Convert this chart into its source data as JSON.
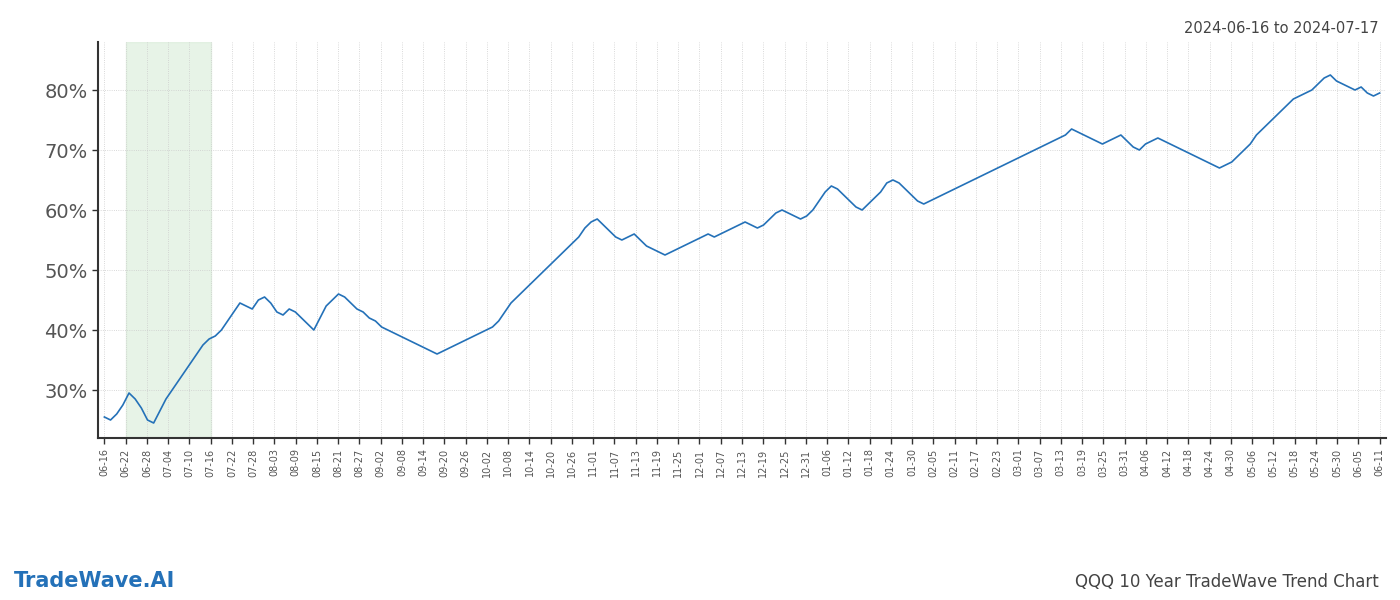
{
  "title_top_right": "2024-06-16 to 2024-07-17",
  "title_bottom_left": "TradeWave.AI",
  "title_bottom_right": "QQQ 10 Year TradeWave Trend Chart",
  "line_color": "#2471b8",
  "line_width": 1.2,
  "bg_color": "#ffffff",
  "grid_color": "#cccccc",
  "grid_linestyle": "dotted",
  "shade_color": "#d4ead4",
  "shade_alpha": 0.55,
  "ylim": [
    22,
    88
  ],
  "yticks": [
    30,
    40,
    50,
    60,
    70,
    80
  ],
  "ytick_labels": [
    "30%",
    "40%",
    "50%",
    "60%",
    "70%",
    "80%"
  ],
  "x_labels": [
    "06-16",
    "06-22",
    "06-28",
    "07-04",
    "07-10",
    "07-16",
    "07-22",
    "07-28",
    "08-03",
    "08-09",
    "08-15",
    "08-21",
    "08-27",
    "09-02",
    "09-08",
    "09-14",
    "09-20",
    "09-26",
    "10-02",
    "10-08",
    "10-14",
    "10-20",
    "10-26",
    "11-01",
    "11-07",
    "11-13",
    "11-19",
    "11-25",
    "12-01",
    "12-07",
    "12-13",
    "12-19",
    "12-25",
    "12-31",
    "01-06",
    "01-12",
    "01-18",
    "01-24",
    "01-30",
    "02-05",
    "02-11",
    "02-17",
    "02-23",
    "03-01",
    "03-07",
    "03-13",
    "03-19",
    "03-25",
    "03-31",
    "04-06",
    "04-12",
    "04-18",
    "04-24",
    "04-30",
    "05-06",
    "05-12",
    "05-18",
    "05-24",
    "05-30",
    "06-05",
    "06-11"
  ],
  "shade_label_start": "06-22",
  "shade_label_end": "07-16",
  "y_values": [
    25.5,
    25.0,
    26.0,
    27.5,
    29.5,
    28.5,
    27.0,
    25.0,
    24.5,
    26.5,
    28.5,
    30.0,
    31.5,
    33.0,
    34.5,
    36.0,
    37.5,
    38.5,
    39.0,
    40.0,
    41.5,
    43.0,
    44.5,
    44.0,
    43.5,
    45.0,
    45.5,
    44.5,
    43.0,
    42.5,
    43.5,
    43.0,
    42.0,
    41.0,
    40.0,
    42.0,
    44.0,
    45.0,
    46.0,
    45.5,
    44.5,
    43.5,
    43.0,
    42.0,
    41.5,
    40.5,
    40.0,
    39.5,
    39.0,
    38.5,
    38.0,
    37.5,
    37.0,
    36.5,
    36.0,
    36.5,
    37.0,
    37.5,
    38.0,
    38.5,
    39.0,
    39.5,
    40.0,
    40.5,
    41.5,
    43.0,
    44.5,
    45.5,
    46.5,
    47.5,
    48.5,
    49.5,
    50.5,
    51.5,
    52.5,
    53.5,
    54.5,
    55.5,
    57.0,
    58.0,
    58.5,
    57.5,
    56.5,
    55.5,
    55.0,
    55.5,
    56.0,
    55.0,
    54.0,
    53.5,
    53.0,
    52.5,
    53.0,
    53.5,
    54.0,
    54.5,
    55.0,
    55.5,
    56.0,
    55.5,
    56.0,
    56.5,
    57.0,
    57.5,
    58.0,
    57.5,
    57.0,
    57.5,
    58.5,
    59.5,
    60.0,
    59.5,
    59.0,
    58.5,
    59.0,
    60.0,
    61.5,
    63.0,
    64.0,
    63.5,
    62.5,
    61.5,
    60.5,
    60.0,
    61.0,
    62.0,
    63.0,
    64.5,
    65.0,
    64.5,
    63.5,
    62.5,
    61.5,
    61.0,
    61.5,
    62.0,
    62.5,
    63.0,
    63.5,
    64.0,
    64.5,
    65.0,
    65.5,
    66.0,
    66.5,
    67.0,
    67.5,
    68.0,
    68.5,
    69.0,
    69.5,
    70.0,
    70.5,
    71.0,
    71.5,
    72.0,
    72.5,
    73.5,
    73.0,
    72.5,
    72.0,
    71.5,
    71.0,
    71.5,
    72.0,
    72.5,
    71.5,
    70.5,
    70.0,
    71.0,
    71.5,
    72.0,
    71.5,
    71.0,
    70.5,
    70.0,
    69.5,
    69.0,
    68.5,
    68.0,
    67.5,
    67.0,
    67.5,
    68.0,
    69.0,
    70.0,
    71.0,
    72.5,
    73.5,
    74.5,
    75.5,
    76.5,
    77.5,
    78.5,
    79.0,
    79.5,
    80.0,
    81.0,
    82.0,
    82.5,
    81.5,
    81.0,
    80.5,
    80.0,
    80.5,
    79.5,
    79.0,
    79.5
  ]
}
